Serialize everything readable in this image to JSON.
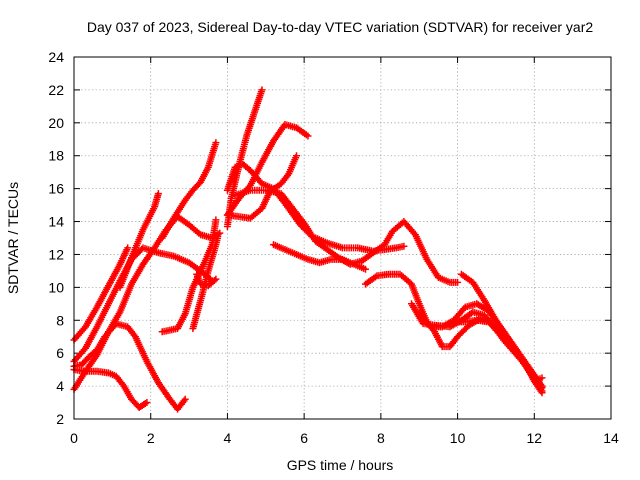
{
  "chart_data": {
    "type": "scatter",
    "title": "Day 037 of 2023, Sidereal Day-to-day VTEC variation (SDTVAR) for receiver yar2",
    "xlabel": "GPS time / hours",
    "ylabel": "SDTVAR / TECUs",
    "xlim": [
      0,
      14
    ],
    "ylim": [
      2,
      24
    ],
    "xticks": [
      "0",
      "2",
      "4",
      "6",
      "8",
      "10",
      "12",
      "14"
    ],
    "yticks": [
      "2",
      "4",
      "6",
      "8",
      "10",
      "12",
      "14",
      "16",
      "18",
      "20",
      "22",
      "24"
    ],
    "grid": true,
    "marker": "plus",
    "color": "#ff0000",
    "series": [
      {
        "points": [
          [
            0.0,
            6.8
          ],
          [
            0.3,
            7.6
          ],
          [
            0.6,
            8.8
          ],
          [
            0.9,
            10.1
          ],
          [
            1.2,
            11.4
          ],
          [
            1.4,
            12.4
          ]
        ]
      },
      {
        "points": [
          [
            0.0,
            5.5
          ],
          [
            0.3,
            6.3
          ],
          [
            0.6,
            7.6
          ],
          [
            0.9,
            9.0
          ],
          [
            1.2,
            10.4
          ],
          [
            1.5,
            11.7
          ],
          [
            1.8,
            12.4
          ],
          [
            2.2,
            12.1
          ],
          [
            2.6,
            11.9
          ],
          [
            3.0,
            11.5
          ],
          [
            3.3,
            11.0
          ],
          [
            3.6,
            10.4
          ]
        ]
      },
      {
        "points": [
          [
            0.0,
            3.8
          ],
          [
            0.3,
            4.9
          ],
          [
            0.6,
            5.9
          ],
          [
            0.9,
            7.3
          ],
          [
            1.2,
            8.5
          ],
          [
            1.5,
            10.2
          ],
          [
            1.8,
            11.4
          ],
          [
            2.1,
            12.4
          ],
          [
            2.4,
            13.5
          ],
          [
            2.7,
            14.3
          ],
          [
            3.0,
            13.8
          ],
          [
            3.3,
            13.2
          ],
          [
            3.6,
            13.0
          ],
          [
            3.8,
            13.3
          ]
        ]
      },
      {
        "points": [
          [
            0.0,
            5.2
          ],
          [
            0.2,
            5.3
          ],
          [
            0.4,
            5.8
          ],
          [
            0.6,
            6.2
          ],
          [
            0.8,
            7.0
          ],
          [
            1.1,
            7.8
          ],
          [
            1.4,
            7.6
          ],
          [
            1.6,
            7.0
          ],
          [
            1.9,
            5.5
          ],
          [
            2.2,
            4.2
          ],
          [
            2.5,
            3.2
          ],
          [
            2.7,
            2.6
          ],
          [
            2.9,
            3.2
          ]
        ]
      },
      {
        "points": [
          [
            0.0,
            5.0
          ],
          [
            0.3,
            4.9
          ],
          [
            0.6,
            4.9
          ],
          [
            0.9,
            4.8
          ],
          [
            1.1,
            4.6
          ],
          [
            1.3,
            4.0
          ],
          [
            1.5,
            3.2
          ],
          [
            1.7,
            2.7
          ],
          [
            1.9,
            3.0
          ]
        ]
      },
      {
        "points": [
          [
            1.2,
            10.0
          ],
          [
            1.5,
            11.8
          ],
          [
            1.8,
            13.5
          ],
          [
            2.1,
            14.9
          ],
          [
            2.2,
            15.7
          ]
        ]
      },
      {
        "points": [
          [
            2.3,
            7.3
          ],
          [
            2.7,
            7.5
          ],
          [
            2.9,
            8.4
          ],
          [
            3.1,
            10.0
          ],
          [
            3.4,
            11.5
          ],
          [
            3.6,
            12.6
          ],
          [
            3.7,
            14.1
          ]
        ]
      },
      {
        "points": [
          [
            3.1,
            7.5
          ],
          [
            3.3,
            9.2
          ],
          [
            3.5,
            11.0
          ],
          [
            3.7,
            12.6
          ],
          [
            3.75,
            13.1
          ]
        ]
      },
      {
        "points": [
          [
            3.2,
            10.8
          ],
          [
            3.3,
            10.2
          ],
          [
            3.5,
            10.1
          ],
          [
            3.7,
            10.5
          ]
        ]
      },
      {
        "points": [
          [
            2.3,
            13.0
          ],
          [
            2.6,
            14.2
          ],
          [
            2.9,
            15.3
          ],
          [
            3.1,
            15.9
          ],
          [
            3.3,
            16.4
          ],
          [
            3.5,
            17.3
          ],
          [
            3.7,
            18.8
          ]
        ]
      },
      {
        "points": [
          [
            4.0,
            13.7
          ],
          [
            4.1,
            15.4
          ],
          [
            4.3,
            17.4
          ],
          [
            4.5,
            19.2
          ],
          [
            4.7,
            20.6
          ],
          [
            4.9,
            22.0
          ]
        ]
      },
      {
        "points": [
          [
            4.0,
            15.9
          ],
          [
            4.2,
            17.3
          ],
          [
            4.4,
            17.5
          ],
          [
            4.6,
            17.1
          ],
          [
            4.9,
            16.3
          ],
          [
            5.2,
            16.0
          ],
          [
            5.5,
            15.1
          ],
          [
            5.9,
            13.8
          ],
          [
            6.2,
            13.1
          ],
          [
            6.6,
            12.7
          ],
          [
            7.0,
            12.4
          ],
          [
            7.4,
            12.4
          ],
          [
            7.8,
            12.2
          ],
          [
            8.1,
            12.3
          ],
          [
            8.4,
            12.4
          ],
          [
            8.6,
            12.5
          ]
        ]
      },
      {
        "points": [
          [
            4.0,
            14.4
          ],
          [
            4.3,
            14.3
          ],
          [
            4.6,
            14.2
          ],
          [
            4.9,
            14.8
          ],
          [
            5.1,
            15.8
          ],
          [
            5.4,
            16.3
          ],
          [
            5.6,
            16.9
          ],
          [
            5.8,
            18.0
          ]
        ]
      },
      {
        "points": [
          [
            4.0,
            14.4
          ],
          [
            4.3,
            15.4
          ],
          [
            4.6,
            16.2
          ],
          [
            4.9,
            17.6
          ],
          [
            5.2,
            18.9
          ],
          [
            5.5,
            19.9
          ],
          [
            5.8,
            19.7
          ],
          [
            6.1,
            19.2
          ]
        ]
      },
      {
        "points": [
          [
            4.2,
            15.6
          ],
          [
            4.6,
            15.9
          ],
          [
            5.0,
            15.9
          ],
          [
            5.4,
            15.7
          ],
          [
            5.7,
            14.8
          ],
          [
            6.0,
            13.9
          ],
          [
            6.3,
            12.8
          ],
          [
            6.6,
            12.3
          ],
          [
            6.9,
            11.8
          ],
          [
            7.2,
            11.4
          ],
          [
            7.5,
            11.6
          ],
          [
            7.8,
            12.1
          ],
          [
            8.1,
            12.6
          ],
          [
            8.3,
            13.4
          ],
          [
            8.6,
            14.0
          ],
          [
            8.9,
            13.2
          ],
          [
            9.2,
            11.7
          ],
          [
            9.5,
            10.6
          ],
          [
            9.8,
            10.3
          ],
          [
            10.0,
            10.3
          ]
        ]
      },
      {
        "points": [
          [
            5.2,
            12.6
          ],
          [
            5.5,
            12.3
          ],
          [
            5.8,
            12.0
          ],
          [
            6.1,
            11.7
          ],
          [
            6.4,
            11.5
          ],
          [
            6.7,
            11.7
          ],
          [
            7.0,
            11.7
          ],
          [
            7.3,
            11.4
          ],
          [
            7.6,
            11.1
          ]
        ]
      },
      {
        "points": [
          [
            7.6,
            10.2
          ],
          [
            7.9,
            10.7
          ],
          [
            8.2,
            10.8
          ],
          [
            8.5,
            10.8
          ],
          [
            8.8,
            10.2
          ],
          [
            9.0,
            9.0
          ],
          [
            9.2,
            7.9
          ],
          [
            9.4,
            7.3
          ],
          [
            9.6,
            6.4
          ],
          [
            9.8,
            6.4
          ],
          [
            10.0,
            7.0
          ],
          [
            10.3,
            7.7
          ],
          [
            10.6,
            8.1
          ],
          [
            10.9,
            7.8
          ],
          [
            11.2,
            6.8
          ],
          [
            11.5,
            6.0
          ],
          [
            11.8,
            5.2
          ],
          [
            12.1,
            4.4
          ],
          [
            12.2,
            4.5
          ]
        ]
      },
      {
        "points": [
          [
            8.8,
            9.0
          ],
          [
            9.1,
            7.8
          ],
          [
            9.4,
            7.7
          ],
          [
            9.8,
            7.6
          ],
          [
            10.1,
            8.0
          ],
          [
            10.4,
            8.5
          ],
          [
            10.7,
            8.3
          ],
          [
            11.0,
            7.4
          ],
          [
            11.3,
            6.7
          ],
          [
            11.6,
            5.8
          ],
          [
            11.9,
            4.8
          ],
          [
            12.2,
            3.7
          ]
        ]
      },
      {
        "points": [
          [
            9.0,
            8.4
          ],
          [
            9.3,
            7.6
          ],
          [
            9.6,
            7.6
          ],
          [
            9.9,
            8.0
          ],
          [
            10.2,
            8.8
          ],
          [
            10.5,
            9.0
          ],
          [
            10.8,
            8.6
          ],
          [
            11.1,
            7.6
          ],
          [
            11.4,
            6.6
          ],
          [
            11.7,
            5.6
          ],
          [
            12.0,
            4.3
          ],
          [
            12.2,
            3.6
          ]
        ]
      },
      {
        "points": [
          [
            10.1,
            10.8
          ],
          [
            10.4,
            10.3
          ],
          [
            10.7,
            9.2
          ],
          [
            11.0,
            8.0
          ],
          [
            11.3,
            7.0
          ],
          [
            11.6,
            6.0
          ],
          [
            11.9,
            5.0
          ],
          [
            12.2,
            3.9
          ]
        ]
      },
      {
        "points": [
          [
            9.9,
            7.9
          ],
          [
            10.2,
            7.9
          ],
          [
            10.5,
            8.0
          ],
          [
            10.8,
            7.9
          ],
          [
            11.1,
            7.3
          ],
          [
            11.4,
            6.4
          ],
          [
            11.7,
            5.5
          ],
          [
            12.0,
            4.6
          ],
          [
            12.2,
            4.0
          ]
        ]
      }
    ]
  }
}
